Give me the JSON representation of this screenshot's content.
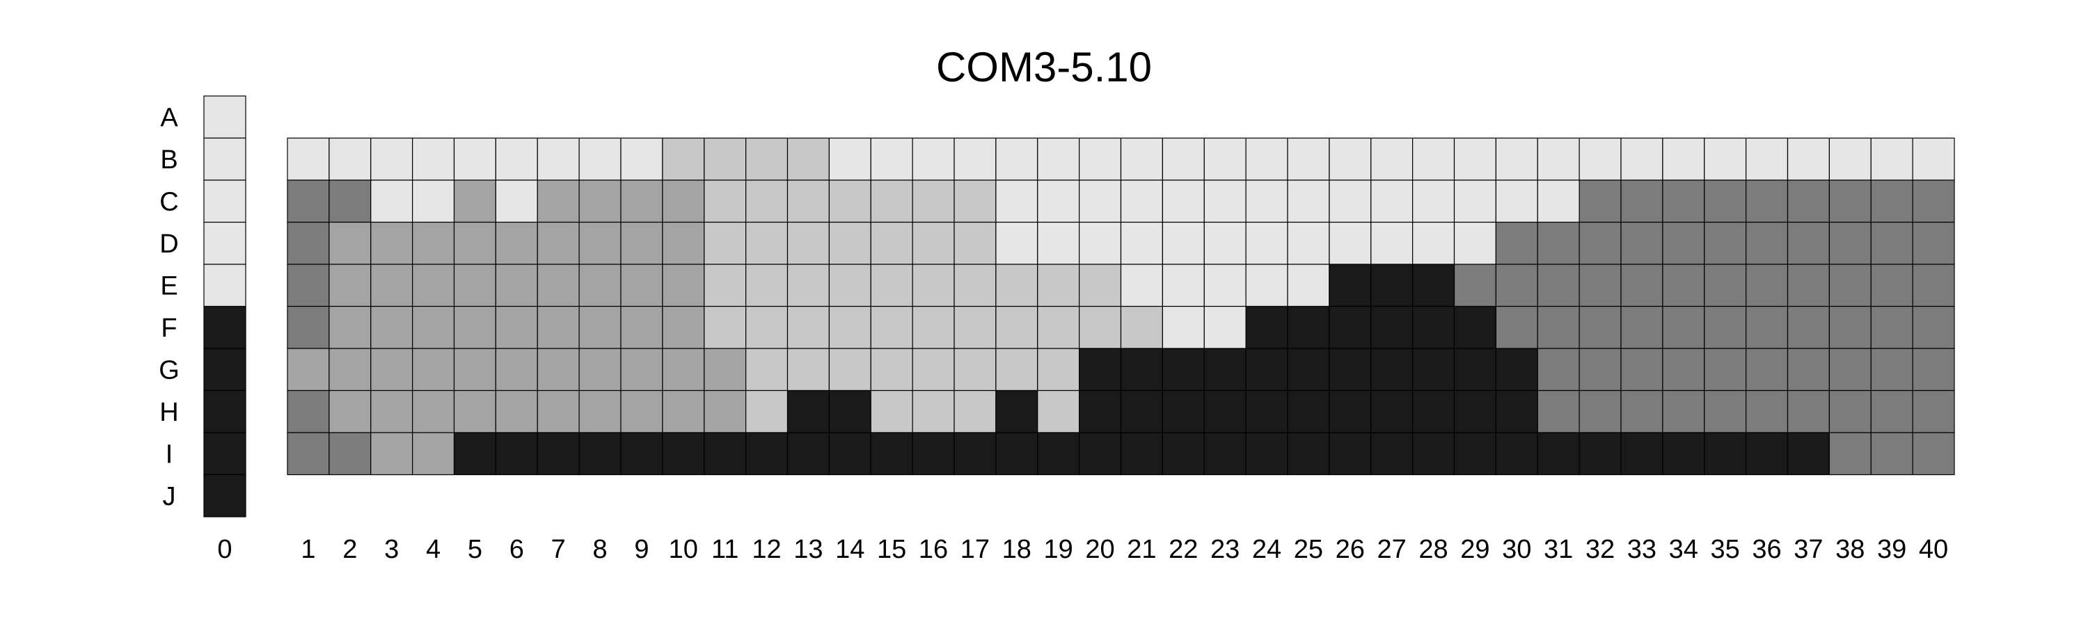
{
  "chart_data": {
    "type": "heatmap",
    "title": "COM3-5.10",
    "rows": [
      "A",
      "B",
      "C",
      "D",
      "E",
      "F",
      "G",
      "H",
      "I",
      "J"
    ],
    "columns": [
      "0",
      "1",
      "2",
      "3",
      "4",
      "5",
      "6",
      "7",
      "8",
      "9",
      "10",
      "11",
      "12",
      "13",
      "14",
      "15",
      "16",
      "17",
      "18",
      "19",
      "20",
      "21",
      "22",
      "23",
      "24",
      "25",
      "26",
      "27",
      "28",
      "29",
      "30",
      "31",
      "32",
      "33",
      "34",
      "35",
      "36",
      "37",
      "38",
      "39",
      "40"
    ],
    "levels": {
      "0": "#e6e6e6",
      "1": "#c8c8c8",
      "2": "#a4a4a4",
      "3": "#7c7c7c",
      "4": "#1a1a1a"
    },
    "column_0": {
      "rows": [
        "A",
        "B",
        "C",
        "D",
        "E",
        "F",
        "G",
        "H",
        "I",
        "J"
      ],
      "values": [
        0,
        0,
        0,
        0,
        0,
        4,
        4,
        4,
        4,
        4
      ]
    },
    "grid": {
      "rows": [
        "B",
        "C",
        "D",
        "E",
        "F",
        "G",
        "H",
        "I"
      ],
      "columns": [
        "1",
        "2",
        "3",
        "4",
        "5",
        "6",
        "7",
        "8",
        "9",
        "10",
        "11",
        "12",
        "13",
        "14",
        "15",
        "16",
        "17",
        "18",
        "19",
        "20",
        "21",
        "22",
        "23",
        "24",
        "25",
        "26",
        "27",
        "28",
        "29",
        "30",
        "31",
        "32",
        "33",
        "34",
        "35",
        "36",
        "37",
        "38",
        "39",
        "40"
      ],
      "values": [
        [
          0,
          0,
          0,
          0,
          0,
          0,
          0,
          0,
          0,
          1,
          1,
          1,
          1,
          0,
          0,
          0,
          0,
          0,
          0,
          0,
          0,
          0,
          0,
          0,
          0,
          0,
          0,
          0,
          0,
          0,
          0,
          0,
          0,
          0,
          0,
          0,
          0,
          0,
          0,
          0
        ],
        [
          3,
          3,
          0,
          0,
          2,
          0,
          2,
          2,
          2,
          2,
          1,
          1,
          1,
          1,
          1,
          1,
          1,
          0,
          0,
          0,
          0,
          0,
          0,
          0,
          0,
          0,
          0,
          0,
          0,
          0,
          0,
          3,
          3,
          3,
          3,
          3,
          3,
          3,
          3,
          3
        ],
        [
          3,
          2,
          2,
          2,
          2,
          2,
          2,
          2,
          2,
          2,
          1,
          1,
          1,
          1,
          1,
          1,
          1,
          0,
          0,
          0,
          0,
          0,
          0,
          0,
          0,
          0,
          0,
          0,
          0,
          3,
          3,
          3,
          3,
          3,
          3,
          3,
          3,
          3,
          3,
          3
        ],
        [
          3,
          2,
          2,
          2,
          2,
          2,
          2,
          2,
          2,
          2,
          1,
          1,
          1,
          1,
          1,
          1,
          1,
          1,
          1,
          1,
          0,
          0,
          0,
          0,
          0,
          4,
          4,
          4,
          3,
          3,
          3,
          3,
          3,
          3,
          3,
          3,
          3,
          3,
          3,
          3
        ],
        [
          3,
          2,
          2,
          2,
          2,
          2,
          2,
          2,
          2,
          2,
          1,
          1,
          1,
          1,
          1,
          1,
          1,
          1,
          1,
          1,
          1,
          0,
          0,
          4,
          4,
          4,
          4,
          4,
          4,
          3,
          3,
          3,
          3,
          3,
          3,
          3,
          3,
          3,
          3,
          3
        ],
        [
          2,
          2,
          2,
          2,
          2,
          2,
          2,
          2,
          2,
          2,
          2,
          1,
          1,
          1,
          1,
          1,
          1,
          1,
          1,
          4,
          4,
          4,
          4,
          4,
          4,
          4,
          4,
          4,
          4,
          4,
          3,
          3,
          3,
          3,
          3,
          3,
          3,
          3,
          3,
          3
        ],
        [
          3,
          2,
          2,
          2,
          2,
          2,
          2,
          2,
          2,
          2,
          2,
          1,
          4,
          4,
          1,
          1,
          1,
          4,
          1,
          4,
          4,
          4,
          4,
          4,
          4,
          4,
          4,
          4,
          4,
          4,
          3,
          3,
          3,
          3,
          3,
          3,
          3,
          3,
          3,
          3
        ],
        [
          3,
          3,
          2,
          2,
          4,
          4,
          4,
          4,
          4,
          4,
          4,
          4,
          4,
          4,
          4,
          4,
          4,
          4,
          4,
          4,
          4,
          4,
          4,
          4,
          4,
          4,
          4,
          4,
          4,
          4,
          4,
          4,
          4,
          4,
          4,
          4,
          4,
          3,
          3,
          3
        ]
      ]
    }
  }
}
